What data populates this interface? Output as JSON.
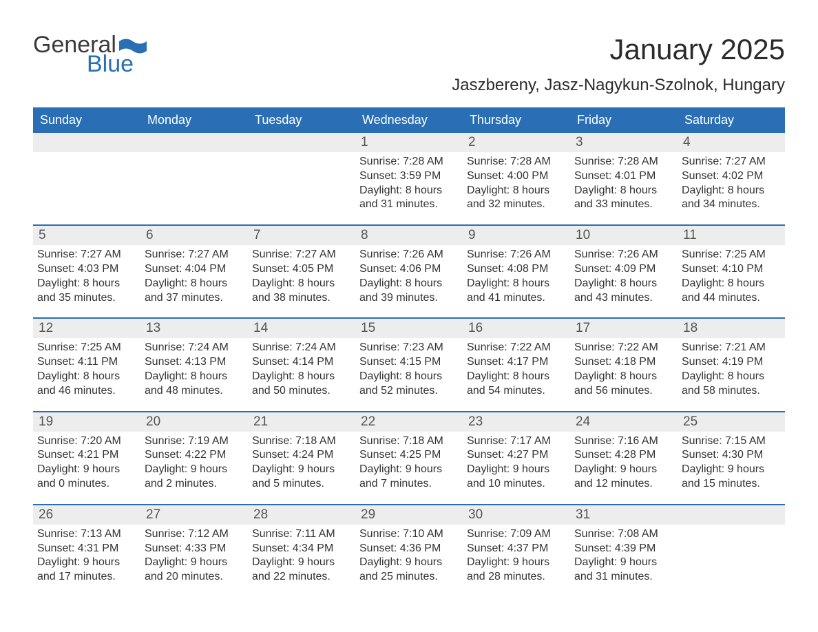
{
  "brand": {
    "word1": "General",
    "word2": "Blue",
    "color_text": "#3a3a3a",
    "color_blue": "#2a6fb5"
  },
  "title": "January 2025",
  "location": "Jaszbereny, Jasz-Nagykun-Szolnok, Hungary",
  "styling": {
    "page_bg": "#ffffff",
    "header_bg": "#2a6fb5",
    "header_fg": "#ffffff",
    "daynum_bg": "#ededed",
    "daynum_fg": "#555555",
    "body_text": "#333333",
    "week_border": "#2a6fb5",
    "title_fontsize": 42,
    "location_fontsize": 24,
    "dow_fontsize": 18,
    "body_fontsize": 16,
    "columns": 7
  },
  "days_of_week": [
    "Sunday",
    "Monday",
    "Tuesday",
    "Wednesday",
    "Thursday",
    "Friday",
    "Saturday"
  ],
  "weeks": [
    [
      null,
      null,
      null,
      {
        "n": "1",
        "sr": "Sunrise: 7:28 AM",
        "ss": "Sunset: 3:59 PM",
        "d1": "Daylight: 8 hours",
        "d2": "and 31 minutes."
      },
      {
        "n": "2",
        "sr": "Sunrise: 7:28 AM",
        "ss": "Sunset: 4:00 PM",
        "d1": "Daylight: 8 hours",
        "d2": "and 32 minutes."
      },
      {
        "n": "3",
        "sr": "Sunrise: 7:28 AM",
        "ss": "Sunset: 4:01 PM",
        "d1": "Daylight: 8 hours",
        "d2": "and 33 minutes."
      },
      {
        "n": "4",
        "sr": "Sunrise: 7:27 AM",
        "ss": "Sunset: 4:02 PM",
        "d1": "Daylight: 8 hours",
        "d2": "and 34 minutes."
      }
    ],
    [
      {
        "n": "5",
        "sr": "Sunrise: 7:27 AM",
        "ss": "Sunset: 4:03 PM",
        "d1": "Daylight: 8 hours",
        "d2": "and 35 minutes."
      },
      {
        "n": "6",
        "sr": "Sunrise: 7:27 AM",
        "ss": "Sunset: 4:04 PM",
        "d1": "Daylight: 8 hours",
        "d2": "and 37 minutes."
      },
      {
        "n": "7",
        "sr": "Sunrise: 7:27 AM",
        "ss": "Sunset: 4:05 PM",
        "d1": "Daylight: 8 hours",
        "d2": "and 38 minutes."
      },
      {
        "n": "8",
        "sr": "Sunrise: 7:26 AM",
        "ss": "Sunset: 4:06 PM",
        "d1": "Daylight: 8 hours",
        "d2": "and 39 minutes."
      },
      {
        "n": "9",
        "sr": "Sunrise: 7:26 AM",
        "ss": "Sunset: 4:08 PM",
        "d1": "Daylight: 8 hours",
        "d2": "and 41 minutes."
      },
      {
        "n": "10",
        "sr": "Sunrise: 7:26 AM",
        "ss": "Sunset: 4:09 PM",
        "d1": "Daylight: 8 hours",
        "d2": "and 43 minutes."
      },
      {
        "n": "11",
        "sr": "Sunrise: 7:25 AM",
        "ss": "Sunset: 4:10 PM",
        "d1": "Daylight: 8 hours",
        "d2": "and 44 minutes."
      }
    ],
    [
      {
        "n": "12",
        "sr": "Sunrise: 7:25 AM",
        "ss": "Sunset: 4:11 PM",
        "d1": "Daylight: 8 hours",
        "d2": "and 46 minutes."
      },
      {
        "n": "13",
        "sr": "Sunrise: 7:24 AM",
        "ss": "Sunset: 4:13 PM",
        "d1": "Daylight: 8 hours",
        "d2": "and 48 minutes."
      },
      {
        "n": "14",
        "sr": "Sunrise: 7:24 AM",
        "ss": "Sunset: 4:14 PM",
        "d1": "Daylight: 8 hours",
        "d2": "and 50 minutes."
      },
      {
        "n": "15",
        "sr": "Sunrise: 7:23 AM",
        "ss": "Sunset: 4:15 PM",
        "d1": "Daylight: 8 hours",
        "d2": "and 52 minutes."
      },
      {
        "n": "16",
        "sr": "Sunrise: 7:22 AM",
        "ss": "Sunset: 4:17 PM",
        "d1": "Daylight: 8 hours",
        "d2": "and 54 minutes."
      },
      {
        "n": "17",
        "sr": "Sunrise: 7:22 AM",
        "ss": "Sunset: 4:18 PM",
        "d1": "Daylight: 8 hours",
        "d2": "and 56 minutes."
      },
      {
        "n": "18",
        "sr": "Sunrise: 7:21 AM",
        "ss": "Sunset: 4:19 PM",
        "d1": "Daylight: 8 hours",
        "d2": "and 58 minutes."
      }
    ],
    [
      {
        "n": "19",
        "sr": "Sunrise: 7:20 AM",
        "ss": "Sunset: 4:21 PM",
        "d1": "Daylight: 9 hours",
        "d2": "and 0 minutes."
      },
      {
        "n": "20",
        "sr": "Sunrise: 7:19 AM",
        "ss": "Sunset: 4:22 PM",
        "d1": "Daylight: 9 hours",
        "d2": "and 2 minutes."
      },
      {
        "n": "21",
        "sr": "Sunrise: 7:18 AM",
        "ss": "Sunset: 4:24 PM",
        "d1": "Daylight: 9 hours",
        "d2": "and 5 minutes."
      },
      {
        "n": "22",
        "sr": "Sunrise: 7:18 AM",
        "ss": "Sunset: 4:25 PM",
        "d1": "Daylight: 9 hours",
        "d2": "and 7 minutes."
      },
      {
        "n": "23",
        "sr": "Sunrise: 7:17 AM",
        "ss": "Sunset: 4:27 PM",
        "d1": "Daylight: 9 hours",
        "d2": "and 10 minutes."
      },
      {
        "n": "24",
        "sr": "Sunrise: 7:16 AM",
        "ss": "Sunset: 4:28 PM",
        "d1": "Daylight: 9 hours",
        "d2": "and 12 minutes."
      },
      {
        "n": "25",
        "sr": "Sunrise: 7:15 AM",
        "ss": "Sunset: 4:30 PM",
        "d1": "Daylight: 9 hours",
        "d2": "and 15 minutes."
      }
    ],
    [
      {
        "n": "26",
        "sr": "Sunrise: 7:13 AM",
        "ss": "Sunset: 4:31 PM",
        "d1": "Daylight: 9 hours",
        "d2": "and 17 minutes."
      },
      {
        "n": "27",
        "sr": "Sunrise: 7:12 AM",
        "ss": "Sunset: 4:33 PM",
        "d1": "Daylight: 9 hours",
        "d2": "and 20 minutes."
      },
      {
        "n": "28",
        "sr": "Sunrise: 7:11 AM",
        "ss": "Sunset: 4:34 PM",
        "d1": "Daylight: 9 hours",
        "d2": "and 22 minutes."
      },
      {
        "n": "29",
        "sr": "Sunrise: 7:10 AM",
        "ss": "Sunset: 4:36 PM",
        "d1": "Daylight: 9 hours",
        "d2": "and 25 minutes."
      },
      {
        "n": "30",
        "sr": "Sunrise: 7:09 AM",
        "ss": "Sunset: 4:37 PM",
        "d1": "Daylight: 9 hours",
        "d2": "and 28 minutes."
      },
      {
        "n": "31",
        "sr": "Sunrise: 7:08 AM",
        "ss": "Sunset: 4:39 PM",
        "d1": "Daylight: 9 hours",
        "d2": "and 31 minutes."
      },
      null
    ]
  ]
}
